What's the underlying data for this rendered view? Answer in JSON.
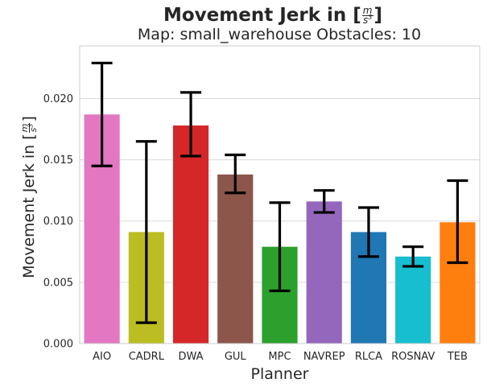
{
  "chart_data": {
    "type": "bar",
    "title": "Movement Jerk in [",
    "title_unit_num": "m",
    "title_unit_den": "s",
    "title_unit_exp": "3",
    "title_close": "]",
    "subtitle": "Map: small_warehouse Obstacles: 10",
    "xlabel": "Planner",
    "ylabel": "Movement Jerk in [",
    "ylabel_close": "]",
    "categories": [
      "AIO",
      "CADRL",
      "DWA",
      "GUL",
      "MPC",
      "NAVREP",
      "RLCA",
      "ROSNAV",
      "TEB"
    ],
    "values": [
      0.0187,
      0.0091,
      0.0178,
      0.0138,
      0.0079,
      0.0116,
      0.0091,
      0.0071,
      0.0099
    ],
    "error_low": [
      0.0145,
      0.0017,
      0.0153,
      0.0123,
      0.0043,
      0.0107,
      0.0071,
      0.0063,
      0.0066
    ],
    "error_high": [
      0.0229,
      0.0165,
      0.0205,
      0.0154,
      0.0115,
      0.0125,
      0.0111,
      0.0079,
      0.0133
    ],
    "colors": [
      "#e377c2",
      "#bcbd22",
      "#d62728",
      "#8c564b",
      "#2ca02c",
      "#9467bd",
      "#1f77b4",
      "#17becf",
      "#ff7f0e"
    ],
    "ylim": [
      0,
      0.0243
    ],
    "yticks": [
      "0.000",
      "0.005",
      "0.010",
      "0.015",
      "0.020"
    ],
    "ytick_values": [
      0,
      0.005,
      0.01,
      0.015,
      0.02
    ],
    "grid": true
  }
}
